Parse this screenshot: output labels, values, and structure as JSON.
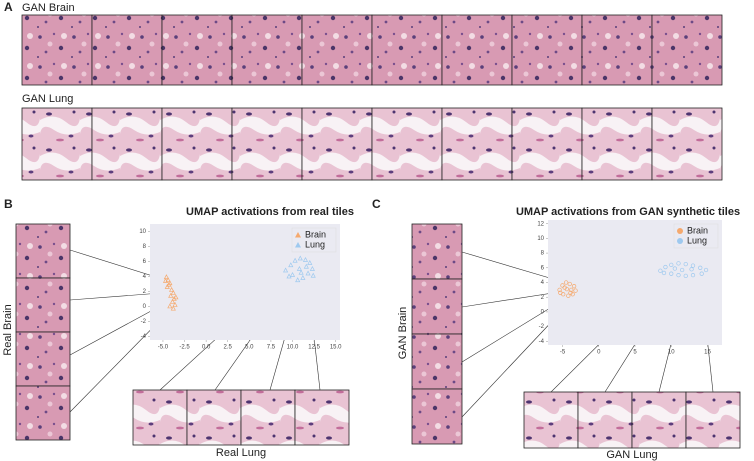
{
  "panel_labels": [
    "A",
    "B",
    "C"
  ],
  "row_labels": [
    "GAN Brain",
    "GAN Lung"
  ],
  "tile_labels": {
    "b_side": "Real Brain",
    "b_bottom": "Real Lung",
    "c_side": "GAN Brain",
    "c_bottom": "GAN Lung"
  },
  "chart_data": [
    {
      "type": "scatter",
      "title": "UMAP activations from real tiles",
      "marker": "triangle",
      "legend": "upper right",
      "grid": false,
      "xlim": [
        -6.5,
        15.5
      ],
      "ylim": [
        -4.5,
        11
      ],
      "xticks": [
        {
          "value": -5,
          "label": "-5.0"
        },
        {
          "value": -2.5,
          "label": "-2.5"
        },
        {
          "value": 0,
          "label": "0.0"
        },
        {
          "value": 2.5,
          "label": "2.5"
        },
        {
          "value": 5,
          "label": "5.0"
        },
        {
          "value": 7.5,
          "label": "7.5"
        },
        {
          "value": 10,
          "label": "10.0"
        },
        {
          "value": 12.5,
          "label": "12.5"
        },
        {
          "value": 15,
          "label": "15.0"
        }
      ],
      "yticks": [
        -4,
        -2,
        0,
        2,
        4,
        6,
        8,
        10
      ],
      "series": [
        {
          "name": "Brain",
          "color": "#f5a96e",
          "x": [
            -4.6,
            -4.4,
            -4.2,
            -4.5,
            -4.0,
            -3.8,
            -4.1,
            -3.7,
            -3.9,
            -3.6,
            -4.3,
            -3.5,
            -4.2,
            -3.8,
            -4.7
          ],
          "y": [
            3.9,
            3.5,
            3.1,
            2.6,
            2.2,
            1.8,
            1.4,
            1.0,
            0.6,
            0.2,
            2.9,
            1.2,
            0.0,
            -0.3,
            3.4
          ]
        },
        {
          "name": "Lung",
          "color": "#9ec9ef",
          "x": [
            9.2,
            9.8,
            10.3,
            10.9,
            11.5,
            12.0,
            12.3,
            11.8,
            11.2,
            10.6,
            10.0,
            10.8,
            11.6,
            12.4,
            9.6,
            11.0
          ],
          "y": [
            4.8,
            5.5,
            6.1,
            6.4,
            6.2,
            5.8,
            5.0,
            4.4,
            3.8,
            3.5,
            4.2,
            5.0,
            5.3,
            4.1,
            4.0,
            4.5
          ]
        }
      ]
    },
    {
      "type": "scatter",
      "title": "UMAP activations from GAN synthetic tiles",
      "marker": "circle",
      "legend": "upper right",
      "grid": false,
      "xlim": [
        -7,
        17
      ],
      "ylim": [
        -4.5,
        12.5
      ],
      "xticks": [
        -5,
        0,
        5,
        10,
        15
      ],
      "yticks": [
        -4,
        -2,
        0,
        2,
        4,
        6,
        8,
        10,
        12
      ],
      "series": [
        {
          "name": "Brain",
          "color": "#f5a96e",
          "x": [
            -5.4,
            -5.0,
            -4.5,
            -4.0,
            -3.4,
            -3.2,
            -3.6,
            -4.2,
            -4.9,
            -5.3,
            -4.4,
            -3.8,
            -4.7,
            -3.9
          ],
          "y": [
            3.0,
            3.6,
            4.0,
            3.8,
            3.5,
            2.9,
            2.4,
            2.2,
            2.4,
            2.6,
            3.1,
            3.0,
            3.3,
            2.6
          ]
        },
        {
          "name": "Lung",
          "color": "#9ec9ef",
          "x": [
            8.5,
            9.2,
            10.0,
            11.0,
            12.0,
            13.0,
            14.0,
            14.8,
            14.2,
            13.0,
            12.0,
            11.0,
            10.0,
            9.0,
            11.5,
            12.8,
            10.5
          ],
          "y": [
            5.6,
            6.1,
            6.4,
            6.6,
            6.5,
            6.3,
            6.0,
            5.7,
            5.2,
            5.0,
            4.9,
            5.0,
            5.2,
            5.3,
            5.7,
            5.8,
            5.9
          ]
        }
      ]
    }
  ]
}
